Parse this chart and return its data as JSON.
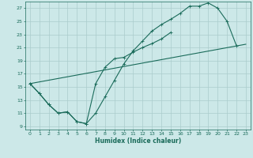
{
  "xlabel": "Humidex (Indice chaleur)",
  "bg_color": "#cce8e8",
  "grid_color": "#aacccc",
  "line_color": "#1a6b5a",
  "xlim": [
    -0.5,
    23.5
  ],
  "ylim": [
    8.5,
    28
  ],
  "xticks": [
    0,
    1,
    2,
    3,
    4,
    5,
    6,
    7,
    8,
    9,
    10,
    11,
    12,
    13,
    14,
    15,
    16,
    17,
    18,
    19,
    20,
    21,
    22,
    23
  ],
  "yticks": [
    9,
    11,
    13,
    15,
    17,
    19,
    21,
    23,
    25,
    27
  ],
  "line1_x": [
    0,
    1,
    2,
    3,
    4,
    5,
    6,
    7,
    8,
    9,
    10,
    11,
    12,
    13,
    14,
    15,
    16,
    17,
    18,
    19,
    20,
    21,
    22
  ],
  "line1_y": [
    15.5,
    14.0,
    12.3,
    11.0,
    11.2,
    9.7,
    9.4,
    11.0,
    13.5,
    16.0,
    18.5,
    20.5,
    22.0,
    23.5,
    24.5,
    25.3,
    26.2,
    27.3,
    27.3,
    27.8,
    27.0,
    25.0,
    21.3
  ],
  "line2_x": [
    0,
    1,
    2,
    3,
    4,
    5,
    6,
    7,
    8,
    9,
    10,
    11,
    12,
    13,
    14,
    15
  ],
  "line2_y": [
    15.5,
    14.0,
    12.3,
    11.0,
    11.2,
    9.7,
    9.4,
    15.5,
    18.0,
    19.3,
    19.5,
    20.3,
    21.0,
    21.6,
    22.3,
    23.3
  ],
  "line3_x": [
    0,
    23
  ],
  "line3_y": [
    15.5,
    21.5
  ]
}
